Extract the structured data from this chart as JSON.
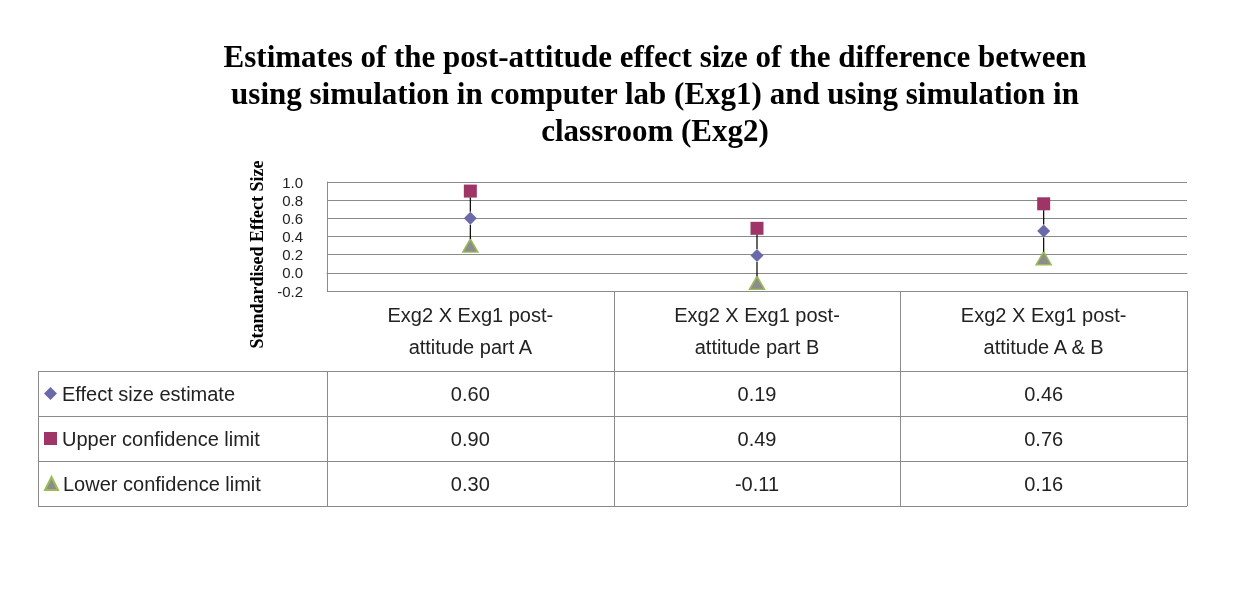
{
  "chart_data": {
    "type": "scatter",
    "title": "Estimates of the post-attitude effect size of the difference between using simulation in computer lab (Exg1) and using simulation in classroom (Exg2)",
    "ylabel": "Standardised Effect Size",
    "categories": [
      "Exg2 X Exg1 post-attitude part A",
      "Exg2 X Exg1 post-attitude part B",
      "Exg2 X Exg1 post-attitude A & B"
    ],
    "series": [
      {
        "name": "Effect size estimate",
        "color": "#6a6aa8",
        "marker": "diamond",
        "values": [
          0.6,
          0.19,
          0.46
        ],
        "value_labels": [
          "0.60",
          "0.19",
          "0.46"
        ]
      },
      {
        "name": "Upper confidence limit",
        "color": "#9e3566",
        "marker": "square",
        "values": [
          0.9,
          0.49,
          0.76
        ],
        "value_labels": [
          "0.90",
          "0.49",
          "0.76"
        ]
      },
      {
        "name": "Lower confidence limit",
        "color": "#8c8c8c",
        "marker": "triangle",
        "values": [
          0.3,
          -0.11,
          0.16
        ],
        "value_labels": [
          "0.30",
          "-0.11",
          "0.16"
        ]
      }
    ],
    "ylim": [
      -0.2,
      1.0
    ],
    "yticks": [
      -0.2,
      {
        "value": 0,
        "label": "0.0"
      },
      0.2,
      0.4,
      0.6,
      0.8,
      {
        "value": 1,
        "label": "1.0"
      }
    ],
    "grid": "y",
    "legend": "bottom left"
  }
}
